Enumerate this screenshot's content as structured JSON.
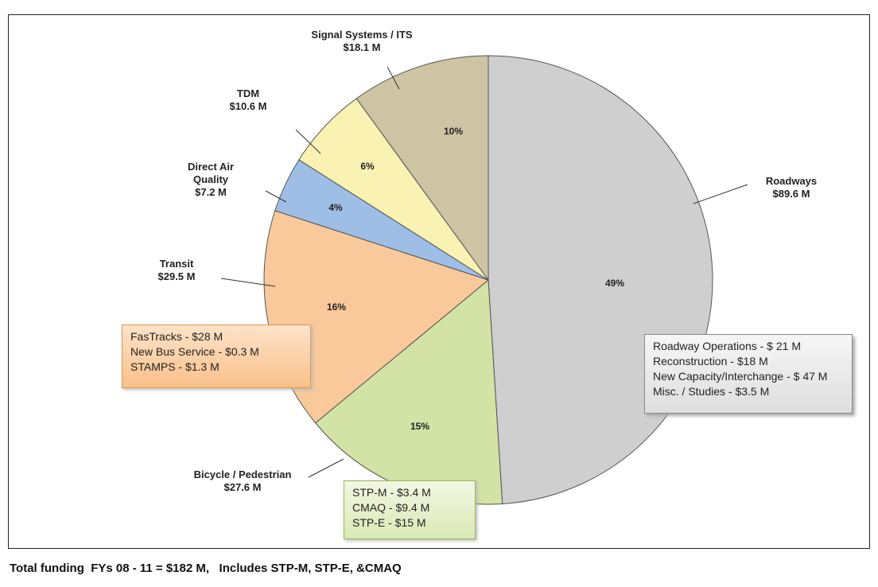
{
  "chart_data": {
    "type": "pie",
    "categories": [
      "Roadways",
      "Bicycle / Pedestrian",
      "Transit",
      "Direct Air Quality",
      "TDM",
      "Signal Systems / ITS"
    ],
    "amounts": [
      "$89.6 M",
      "$27.6 M",
      "$29.5 M",
      "$7.2 M",
      "$10.6 M",
      "$18.1 M"
    ],
    "values": [
      49,
      15,
      16,
      4,
      6,
      10
    ],
    "value_labels": [
      "49%",
      "15%",
      "16%",
      "4%",
      "6%",
      "10%"
    ],
    "colors": [
      "#cfcfcf",
      "#d3e3a6",
      "#f9c99b",
      "#9fbee6",
      "#faf2b2",
      "#cdc4a3"
    ],
    "callouts": [
      {
        "slice": "Roadways",
        "lines": [
          "Roadway Operations - $ 21 M",
          "Reconstruction - $18 M",
          "New Capacity/Interchange - $ 47 M",
          "Misc. / Studies - $3.5 M"
        ]
      },
      {
        "slice": "Bicycle / Pedestrian",
        "lines": [
          "STP-M - $3.4 M",
          "CMAQ - $9.4 M",
          "STP-E - $15 M"
        ]
      },
      {
        "slice": "Transit",
        "lines": [
          "FasTracks - $28 M",
          "New Bus Service - $0.3 M",
          "STAMPS - $1.3 M"
        ]
      }
    ],
    "footnote": "Total funding  FYs 08 - 11 = $182 M,   Includes STP-M, STP-E, &CMAQ"
  }
}
